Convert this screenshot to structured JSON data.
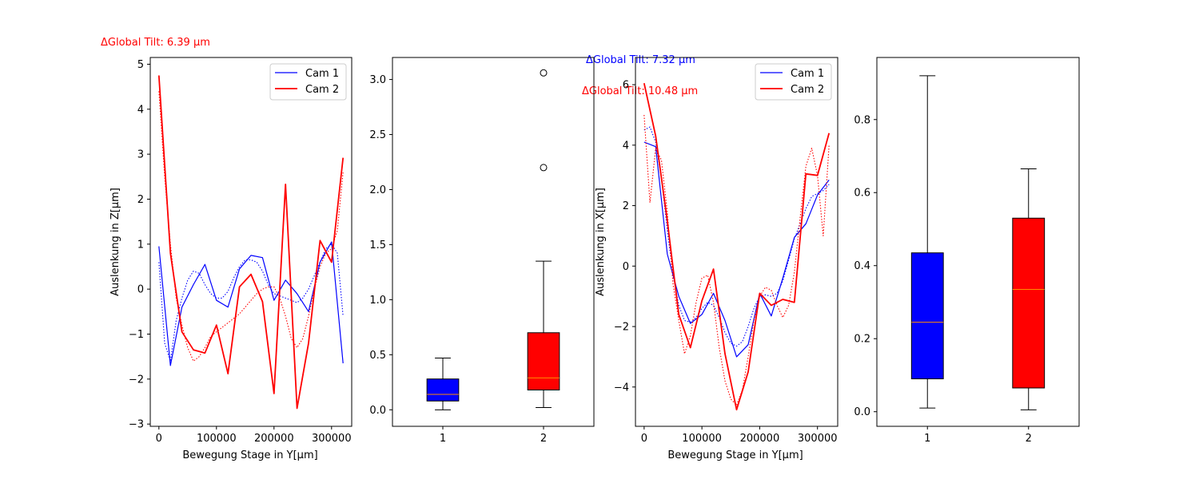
{
  "figure": {
    "top_annotations": [
      {
        "text": "ΔGlobal Tilt: 6.39 µm",
        "color": "#ff0000"
      },
      {
        "text": "ΔGlobal Tilt: 7.32 µm",
        "color": "#0000ff"
      },
      {
        "text": "ΔGlobal Tilt: 10.48 µm",
        "color": "#ff0000"
      }
    ]
  },
  "chart_data": [
    {
      "type": "line",
      "xlabel": "Bewegung Stage in Y[µm]",
      "ylabel": "Auslenkung in Z[µm]",
      "xlim": [
        -15000,
        335000
      ],
      "ylim": [
        -3.05,
        5.15
      ],
      "xticks": [
        0,
        100000,
        200000,
        300000
      ],
      "yticks": [
        -3,
        -2,
        -1,
        0,
        1,
        2,
        3,
        4,
        5
      ],
      "legend": {
        "position": "top-right",
        "entries": [
          "Cam 1",
          "Cam 2"
        ]
      },
      "series": [
        {
          "name": "Cam 1",
          "color": "#0000ff",
          "style": "solid",
          "x": [
            0,
            20000,
            40000,
            60000,
            80000,
            100000,
            120000,
            140000,
            160000,
            180000,
            200000,
            220000,
            240000,
            260000,
            280000,
            300000,
            320000
          ],
          "y": [
            0.95,
            -1.7,
            -0.4,
            0.1,
            0.55,
            -0.25,
            -0.4,
            0.45,
            0.75,
            0.7,
            -0.25,
            0.2,
            -0.1,
            -0.5,
            0.6,
            1.05,
            -1.65
          ]
        },
        {
          "name": "",
          "color": "#0000ff",
          "style": "dotted",
          "x": [
            0,
            10000,
            20000,
            30000,
            40000,
            50000,
            60000,
            70000,
            80000,
            90000,
            100000,
            110000,
            120000,
            130000,
            140000,
            150000,
            160000,
            170000,
            180000,
            190000,
            200000,
            210000,
            220000,
            230000,
            240000,
            250000,
            260000,
            270000,
            280000,
            290000,
            300000,
            310000,
            320000
          ],
          "y": [
            0.6,
            -1.2,
            -1.6,
            -0.7,
            -0.2,
            0.2,
            0.4,
            0.35,
            0.1,
            -0.1,
            -0.2,
            -0.2,
            -0.05,
            0.25,
            0.5,
            0.65,
            0.65,
            0.6,
            0.4,
            0.1,
            -0.1,
            -0.15,
            -0.2,
            -0.25,
            -0.3,
            -0.2,
            0.0,
            0.3,
            0.6,
            0.9,
            1.0,
            0.8,
            -0.6
          ]
        },
        {
          "name": "Cam 2",
          "color": "#ff0000",
          "style": "solid",
          "x": [
            0,
            20000,
            40000,
            60000,
            80000,
            100000,
            120000,
            140000,
            160000,
            180000,
            200000,
            220000,
            240000,
            260000,
            280000,
            300000,
            320000
          ],
          "y": [
            4.75,
            0.8,
            -0.95,
            -1.35,
            -1.42,
            -0.8,
            -1.88,
            0.05,
            0.33,
            -0.28,
            -2.32,
            2.33,
            -2.65,
            -1.2,
            1.08,
            0.6,
            2.92
          ]
        },
        {
          "name": "",
          "color": "#ff0000",
          "style": "dotted",
          "x": [
            0,
            10000,
            20000,
            30000,
            40000,
            50000,
            60000,
            70000,
            80000,
            90000,
            100000,
            110000,
            120000,
            130000,
            140000,
            150000,
            160000,
            170000,
            180000,
            190000,
            200000,
            210000,
            220000,
            230000,
            240000,
            250000,
            260000,
            270000,
            280000,
            290000,
            300000,
            310000,
            320000
          ],
          "y": [
            4.4,
            2.5,
            1.0,
            -0.2,
            -0.8,
            -1.3,
            -1.6,
            -1.5,
            -1.3,
            -1.05,
            -0.95,
            -0.85,
            -0.75,
            -0.65,
            -0.55,
            -0.4,
            -0.25,
            -0.1,
            0.0,
            0.05,
            0.05,
            -0.2,
            -0.6,
            -1.1,
            -1.3,
            -1.1,
            -0.6,
            0.0,
            0.5,
            0.8,
            0.9,
            1.3,
            2.6
          ]
        }
      ]
    },
    {
      "type": "box",
      "categories": [
        "1",
        "2"
      ],
      "ylim": [
        -0.15,
        3.2
      ],
      "yticks": [
        0.0,
        0.5,
        1.0,
        1.5,
        2.0,
        2.5,
        3.0
      ],
      "yticklabels": [
        "0.0",
        "0.5",
        "1.0",
        "1.5",
        "2.0",
        "2.5",
        "3.0"
      ],
      "boxes": [
        {
          "color": "#0000ff",
          "whislo": 0.0,
          "q1": 0.08,
          "med": 0.14,
          "q3": 0.28,
          "whishi": 0.47,
          "fliers": []
        },
        {
          "color": "#ff0000",
          "whislo": 0.02,
          "q1": 0.18,
          "med": 0.29,
          "q3": 0.7,
          "whishi": 1.35,
          "fliers": [
            2.2,
            3.06
          ]
        }
      ]
    },
    {
      "type": "line",
      "xlabel": "Bewegung Stage in Y[µm]",
      "ylabel": "Auslenkung in X[µm]",
      "xlim": [
        -15000,
        335000
      ],
      "ylim": [
        -5.3,
        6.9
      ],
      "xticks": [
        0,
        100000,
        200000,
        300000
      ],
      "yticks": [
        -4,
        -2,
        0,
        2,
        4,
        6
      ],
      "legend": {
        "position": "top-right",
        "entries": [
          "Cam 1",
          "Cam 2"
        ]
      },
      "series": [
        {
          "name": "Cam 1",
          "color": "#0000ff",
          "style": "solid",
          "x": [
            0,
            20000,
            40000,
            60000,
            80000,
            100000,
            120000,
            140000,
            160000,
            180000,
            200000,
            220000,
            240000,
            260000,
            280000,
            300000,
            320000
          ],
          "y": [
            4.1,
            3.95,
            0.4,
            -1.0,
            -1.9,
            -1.6,
            -0.9,
            -1.8,
            -3.0,
            -2.6,
            -0.9,
            -1.65,
            -0.4,
            0.95,
            1.4,
            2.35,
            2.85
          ]
        },
        {
          "name": "",
          "color": "#0000ff",
          "style": "dotted",
          "x": [
            0,
            10000,
            20000,
            30000,
            40000,
            50000,
            60000,
            70000,
            80000,
            90000,
            100000,
            110000,
            120000,
            130000,
            140000,
            150000,
            160000,
            170000,
            180000,
            190000,
            200000,
            210000,
            220000,
            230000,
            240000,
            250000,
            260000,
            270000,
            280000,
            290000,
            300000,
            310000,
            320000
          ],
          "y": [
            4.5,
            4.6,
            4.1,
            2.9,
            1.2,
            -0.3,
            -1.3,
            -1.8,
            -1.85,
            -1.7,
            -1.4,
            -1.2,
            -1.3,
            -1.7,
            -2.2,
            -2.55,
            -2.65,
            -2.5,
            -2.0,
            -1.4,
            -1.0,
            -0.95,
            -1.0,
            -0.9,
            -0.5,
            0.2,
            0.9,
            1.4,
            1.9,
            2.3,
            2.4,
            2.5,
            2.7
          ]
        },
        {
          "name": "Cam 2",
          "color": "#ff0000",
          "style": "solid",
          "x": [
            0,
            20000,
            40000,
            60000,
            80000,
            100000,
            120000,
            140000,
            160000,
            180000,
            200000,
            220000,
            240000,
            260000,
            280000,
            300000,
            320000
          ],
          "y": [
            6.05,
            4.3,
            1.5,
            -1.6,
            -2.7,
            -1.15,
            -0.1,
            -2.9,
            -4.75,
            -3.5,
            -0.9,
            -1.3,
            -1.1,
            -1.2,
            3.05,
            3.0,
            4.4
          ]
        },
        {
          "name": "",
          "color": "#ff0000",
          "style": "dotted",
          "x": [
            0,
            10000,
            20000,
            30000,
            40000,
            50000,
            60000,
            70000,
            80000,
            90000,
            100000,
            110000,
            120000,
            130000,
            140000,
            150000,
            160000,
            170000,
            180000,
            190000,
            200000,
            210000,
            220000,
            230000,
            240000,
            250000,
            260000,
            270000,
            280000,
            290000,
            300000,
            310000,
            320000
          ],
          "y": [
            5.0,
            2.1,
            3.9,
            3.5,
            1.8,
            -0.6,
            -1.8,
            -2.9,
            -2.3,
            -1.2,
            -0.4,
            -0.3,
            -1.2,
            -2.7,
            -3.8,
            -4.4,
            -4.6,
            -4.1,
            -3.0,
            -1.8,
            -1.0,
            -0.7,
            -0.8,
            -1.3,
            -1.7,
            -1.3,
            -0.2,
            1.6,
            3.3,
            3.9,
            3.0,
            1.0,
            4.0
          ]
        }
      ]
    },
    {
      "type": "box",
      "categories": [
        "1",
        "2"
      ],
      "ylim": [
        -0.04,
        0.97
      ],
      "yticks": [
        0.0,
        0.2,
        0.4,
        0.6,
        0.8
      ],
      "yticklabels": [
        "0.0",
        "0.2",
        "0.4",
        "0.6",
        "0.8"
      ],
      "boxes": [
        {
          "color": "#0000ff",
          "whislo": 0.01,
          "q1": 0.09,
          "med": 0.245,
          "q3": 0.435,
          "whishi": 0.92,
          "fliers": []
        },
        {
          "color": "#ff0000",
          "whislo": 0.005,
          "q1": 0.065,
          "med": 0.335,
          "q3": 0.53,
          "whishi": 0.665,
          "fliers": []
        }
      ]
    }
  ]
}
